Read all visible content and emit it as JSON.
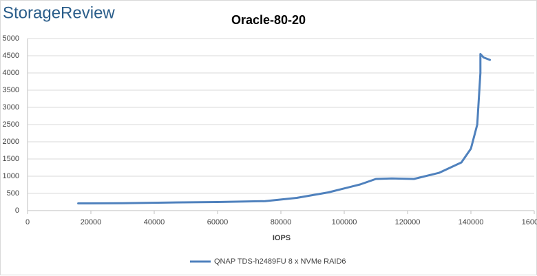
{
  "brand": "StorageReview",
  "chart_data": {
    "type": "line",
    "title": "Oracle-80-20",
    "x_label": "IOPS",
    "xlim": [
      0,
      160000
    ],
    "xticks": [
      0,
      20000,
      40000,
      60000,
      80000,
      100000,
      120000,
      140000,
      160000
    ],
    "ylim": [
      0,
      5000
    ],
    "yticks": [
      0,
      500,
      1000,
      1500,
      2000,
      2500,
      3000,
      3500,
      4000,
      4500,
      5000
    ],
    "grid": true,
    "legend": "bottom",
    "series": [
      {
        "name": "QNAP TDS-h2489FU 8 x NVMe RAID6",
        "color": "#4f81bd",
        "x": [
          16000,
          30000,
          45000,
          60000,
          75000,
          85000,
          95000,
          105000,
          110000,
          115000,
          122000,
          130000,
          137000,
          140000,
          142000,
          143000,
          143000,
          144000,
          146000
        ],
        "values": [
          210,
          215,
          235,
          250,
          275,
          370,
          530,
          760,
          920,
          935,
          920,
          1100,
          1400,
          1800,
          2500,
          4000,
          4550,
          4450,
          4380
        ]
      }
    ]
  }
}
